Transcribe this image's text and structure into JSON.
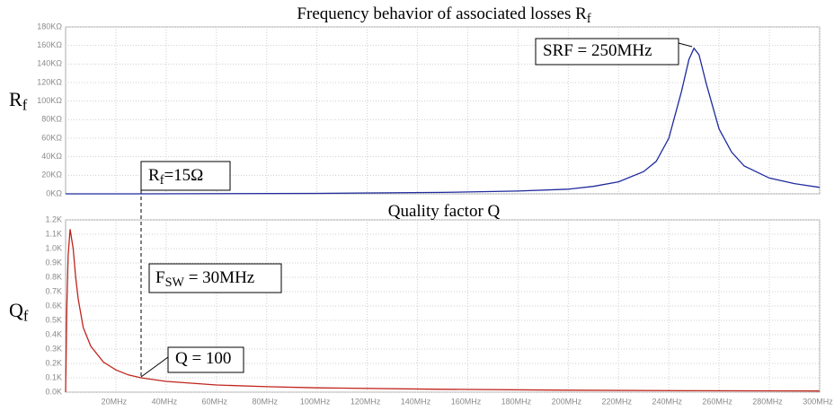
{
  "chart_data": [
    {
      "type": "line",
      "title": "Frequency behavior of associated losses R",
      "title_subscript": "f",
      "ylabel": "R",
      "ylabel_subscript": "f",
      "x": [
        0,
        30,
        100,
        150,
        180,
        200,
        210,
        220,
        230,
        235,
        240,
        245,
        248,
        250,
        252,
        255,
        260,
        265,
        270,
        280,
        290,
        300
      ],
      "values": [
        0,
        15,
        500,
        1500,
        3000,
        5000,
        8000,
        13000,
        24000,
        35000,
        60000,
        110000,
        145000,
        157000,
        150000,
        118000,
        70000,
        45000,
        30000,
        17000,
        11000,
        7000
      ],
      "color": "#1f2a9c",
      "xlim": [
        0,
        300
      ],
      "xticks": [
        20,
        40,
        60,
        80,
        100,
        120,
        140,
        160,
        180,
        200,
        220,
        240,
        260,
        280,
        300
      ],
      "ylim": [
        0,
        180000
      ],
      "yticks": [
        {
          "value": 0,
          "label": "0KΩ"
        },
        {
          "value": 20000,
          "label": "20KΩ"
        },
        {
          "value": 40000,
          "label": "40KΩ"
        },
        {
          "value": 60000,
          "label": "60KΩ"
        },
        {
          "value": 80000,
          "label": "80KΩ"
        },
        {
          "value": 100000,
          "label": "100KΩ"
        },
        {
          "value": 120000,
          "label": "120KΩ"
        },
        {
          "value": 140000,
          "label": "140KΩ"
        },
        {
          "value": 160000,
          "label": "160KΩ"
        },
        {
          "value": 180000,
          "label": "180KΩ"
        }
      ],
      "grid": true,
      "annotations": [
        {
          "text": "SRF = 250MHz"
        },
        {
          "text": "R",
          "subscript": "f",
          "rest": "=15Ω"
        }
      ]
    },
    {
      "type": "line",
      "title": "Quality factor Q",
      "ylabel": "Q",
      "ylabel_subscript": "f",
      "x": [
        0,
        0.5,
        1,
        1.8,
        3,
        4,
        5,
        7,
        10,
        15,
        20,
        25,
        30,
        40,
        60,
        80,
        100,
        150,
        200,
        250,
        300
      ],
      "values": [
        0,
        600,
        950,
        1135,
        1000,
        800,
        650,
        450,
        320,
        210,
        155,
        120,
        100,
        75,
        50,
        38,
        30,
        20,
        14,
        10,
        8
      ],
      "color": "#c0241c",
      "xlim": [
        0,
        300
      ],
      "xticks": [
        {
          "value": 20,
          "label": "20MHz"
        },
        {
          "value": 40,
          "label": "40MHz"
        },
        {
          "value": 60,
          "label": "60MHz"
        },
        {
          "value": 80,
          "label": "80MHz"
        },
        {
          "value": 100,
          "label": "100MHz"
        },
        {
          "value": 120,
          "label": "120MHz"
        },
        {
          "value": 140,
          "label": "140MHz"
        },
        {
          "value": 160,
          "label": "160MHz"
        },
        {
          "value": 180,
          "label": "180MHz"
        },
        {
          "value": 200,
          "label": "200MHz"
        },
        {
          "value": 220,
          "label": "220MHz"
        },
        {
          "value": 240,
          "label": "240MHz"
        },
        {
          "value": 260,
          "label": "260MHz"
        },
        {
          "value": 280,
          "label": "280MHz"
        },
        {
          "value": 300,
          "label": "300MHz"
        }
      ],
      "ylim": [
        0,
        1200
      ],
      "yticks": [
        {
          "value": 0,
          "label": "0.0K"
        },
        {
          "value": 100,
          "label": "0.1K"
        },
        {
          "value": 200,
          "label": "0.2K"
        },
        {
          "value": 300,
          "label": "0.3K"
        },
        {
          "value": 400,
          "label": "0.4K"
        },
        {
          "value": 500,
          "label": "0.5K"
        },
        {
          "value": 600,
          "label": "0.6K"
        },
        {
          "value": 700,
          "label": "0.7K"
        },
        {
          "value": 800,
          "label": "0.8K"
        },
        {
          "value": 900,
          "label": "0.9K"
        },
        {
          "value": 1000,
          "label": "1.0K"
        },
        {
          "value": 1100,
          "label": "1.1K"
        },
        {
          "value": 1200,
          "label": "1.2K"
        }
      ],
      "grid": true,
      "annotations": [
        {
          "text": "F",
          "subscript": "SW",
          "rest": " = 30MHz"
        },
        {
          "text": "Q = 100"
        }
      ]
    }
  ]
}
